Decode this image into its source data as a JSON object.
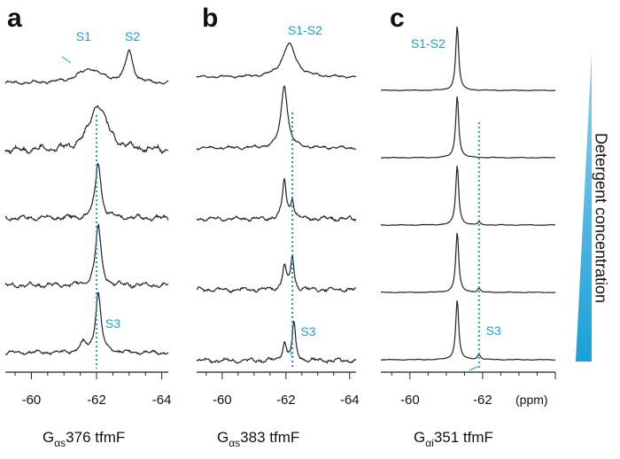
{
  "figure": {
    "colors": {
      "trace": "#222222",
      "accent": "#1a9fd6",
      "wedge": "#1a9fd6",
      "axis": "#222222"
    },
    "side_label": "Detergent concentration",
    "x_unit_label": "(ppm)"
  },
  "chart_data": [
    {
      "type": "line",
      "panel": "a",
      "caption": {
        "pre": "G",
        "sub": "αs",
        "post": "376 tfmF"
      },
      "xlim": [
        -59.2,
        -64.2
      ],
      "x_ticks": [
        -60,
        -62,
        -64
      ],
      "x_tick_labels": [
        "-60",
        "-62",
        "-64"
      ],
      "reference_line_ppm": -62.0,
      "labels": [
        {
          "text": "S1",
          "ppm": -61.6,
          "trace": 0
        },
        {
          "text": "S2",
          "ppm": -63.1,
          "trace": 0
        },
        {
          "text": "S3",
          "ppm": -62.5,
          "trace": 4
        }
      ],
      "series": [
        {
          "peaks": [
            [
              -61.8,
              1.0,
              0.45
            ],
            [
              -63.0,
              2.2,
              0.13
            ]
          ],
          "base": 0,
          "ripple": 0.12
        },
        {
          "peaks": [
            [
              -62.05,
              3.3,
              0.32
            ]
          ],
          "base": 0,
          "ripple": 0.25
        },
        {
          "peaks": [
            [
              -62.05,
              4.0,
              0.1
            ]
          ],
          "base": 0,
          "ripple": 0.18
        },
        {
          "peaks": [
            [
              -62.05,
              4.2,
              0.1
            ]
          ],
          "base": 0,
          "ripple": 0.18
        },
        {
          "peaks": [
            [
              -62.05,
              4.2,
              0.1
            ],
            [
              -61.6,
              0.6,
              0.12
            ]
          ],
          "base": 0,
          "ripple": 0.14
        }
      ]
    },
    {
      "type": "line",
      "panel": "b",
      "caption": {
        "pre": "G",
        "sub": "αs",
        "post": "383 tfmF"
      },
      "xlim": [
        -59.2,
        -64.2
      ],
      "x_ticks": [
        -60,
        -62,
        -64
      ],
      "x_tick_labels": [
        "-60",
        "-62",
        "-64"
      ],
      "reference_line_ppm": -62.2,
      "labels": [
        {
          "text": "S1-S2",
          "ppm": -62.6,
          "trace": 0
        },
        {
          "text": "S3",
          "ppm": -62.7,
          "trace": 4
        }
      ],
      "series": [
        {
          "peaks": [
            [
              -62.1,
              2.2,
              0.25
            ]
          ],
          "base": 0,
          "ripple": 0.08
        },
        {
          "peaks": [
            [
              -61.95,
              4.2,
              0.12
            ]
          ],
          "base": 0,
          "ripple": 0.1
        },
        {
          "peaks": [
            [
              -61.95,
              2.6,
              0.07
            ],
            [
              -62.2,
              1.3,
              0.06
            ]
          ],
          "base": 0,
          "ripple": 0.15
        },
        {
          "peaks": [
            [
              -61.95,
              1.6,
              0.07
            ],
            [
              -62.2,
              2.2,
              0.06
            ]
          ],
          "base": 0,
          "ripple": 0.15
        },
        {
          "peaks": [
            [
              -61.95,
              1.2,
              0.07
            ],
            [
              -62.25,
              2.5,
              0.06
            ]
          ],
          "base": 0,
          "ripple": 0.15
        }
      ]
    },
    {
      "type": "line",
      "panel": "c",
      "caption": {
        "pre": "G",
        "sub": "αi",
        "post": "351 tfmF"
      },
      "xlim": [
        -59.2,
        -64.0
      ],
      "x_ticks": [
        -60,
        -62
      ],
      "x_tick_labels": [
        "-60",
        "-62"
      ],
      "reference_line_ppm": -61.9,
      "labels": [
        {
          "text": "S1-S2",
          "ppm": -60.5,
          "trace": 0
        },
        {
          "text": "S3",
          "ppm": -62.3,
          "trace": 4
        }
      ],
      "series": [
        {
          "peaks": [
            [
              -61.3,
              5.6,
              0.05
            ]
          ],
          "base": 0,
          "ripple": 0.03
        },
        {
          "peaks": [
            [
              -61.3,
              5.4,
              0.05
            ]
          ],
          "base": 0,
          "ripple": 0.03
        },
        {
          "peaks": [
            [
              -61.3,
              5.2,
              0.05
            ],
            [
              -61.9,
              0.25,
              0.04
            ]
          ],
          "base": 0,
          "ripple": 0.03
        },
        {
          "peaks": [
            [
              -61.3,
              5.2,
              0.05
            ],
            [
              -61.9,
              0.35,
              0.04
            ]
          ],
          "base": 0,
          "ripple": 0.03
        },
        {
          "peaks": [
            [
              -61.3,
              5.2,
              0.05
            ],
            [
              -61.9,
              0.45,
              0.05
            ]
          ],
          "base": 0,
          "ripple": 0.03
        }
      ]
    }
  ]
}
